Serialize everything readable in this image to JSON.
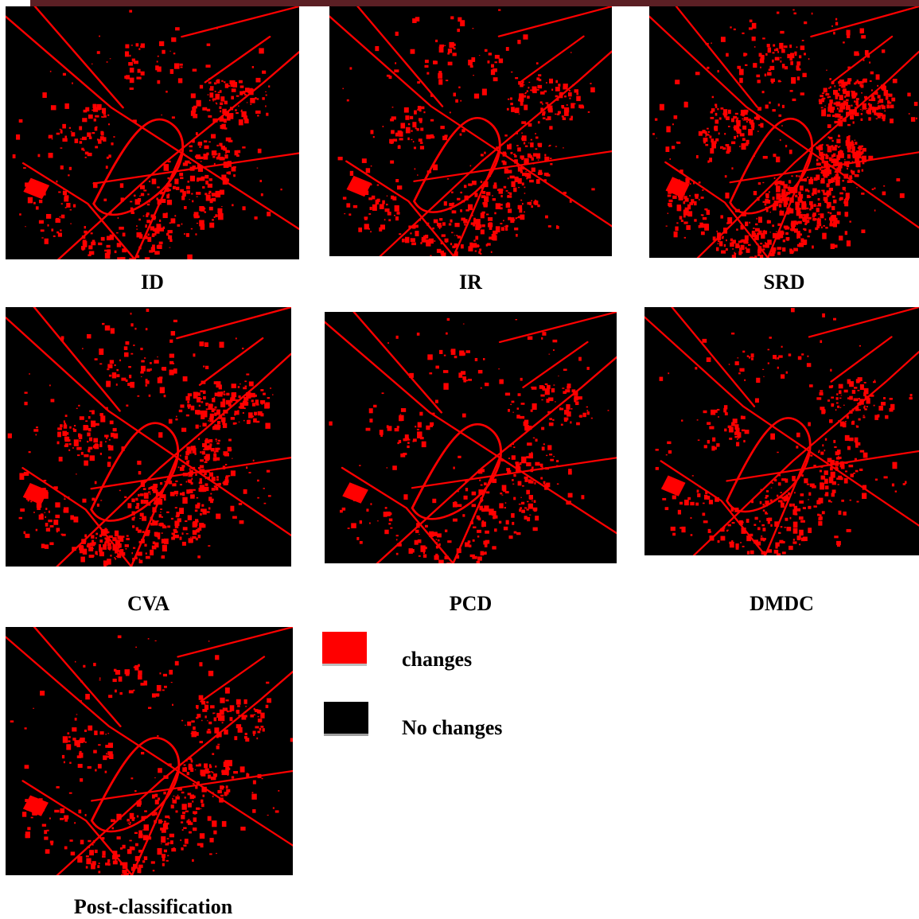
{
  "colors": {
    "change": "#ff0000",
    "nochange": "#000000",
    "topbar": "#5b1f24"
  },
  "panels": [
    {
      "id": "id",
      "caption": "ID",
      "density": 0.55
    },
    {
      "id": "ir",
      "caption": "IR",
      "density": 0.55
    },
    {
      "id": "srd",
      "caption": "SRD",
      "density": 1.0
    },
    {
      "id": "cva",
      "caption": "CVA",
      "density": 0.75
    },
    {
      "id": "pcd",
      "caption": "PCD",
      "density": 0.4
    },
    {
      "id": "dmdc",
      "caption": "DMDC",
      "density": 0.45
    },
    {
      "id": "post",
      "caption": "Post-classification",
      "density": 0.5
    }
  ],
  "legend": {
    "changes": {
      "label": "changes",
      "color": "#ff0000"
    },
    "nochanges": {
      "label": "No changes",
      "color": "#000000"
    }
  }
}
